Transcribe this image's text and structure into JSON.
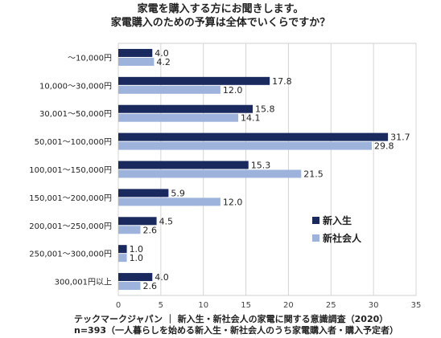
{
  "chart_data": {
    "type": "bar",
    "orientation": "horizontal",
    "title": "家電を購入する方にお聞きします。",
    "subtitle": "家電購入のための予算は全体でいくらですか？",
    "categories": [
      "～10,000円",
      "10,000～30,000円",
      "30,001～50,000円",
      "50,001～100,000円",
      "100,001～150,000円",
      "150,001～200,000円",
      "200,001～250,000円",
      "250,001～300,000円",
      "300,001円以上"
    ],
    "series": [
      {
        "name": "新入生",
        "color": "#1a2a5e",
        "values": [
          4.0,
          17.8,
          15.8,
          31.7,
          15.3,
          5.9,
          4.5,
          1.0,
          4.0
        ]
      },
      {
        "name": "新社会人",
        "color": "#9db3db",
        "values": [
          4.2,
          12.0,
          14.1,
          29.8,
          21.5,
          12.0,
          2.6,
          1.0,
          2.6
        ]
      }
    ],
    "xlim": [
      0,
      35
    ],
    "xticks": [
      0,
      5,
      10,
      15,
      20,
      25,
      30,
      35
    ],
    "grid": true,
    "legend_position": "right"
  },
  "footer": {
    "source": "テックマークジャパン ｜ 新入生・新社会人の家電に関する意識調査（2020）",
    "note": "n=393（一人暮らしを始める新入生・新社会人のうち家電購入者・購入予定者）"
  }
}
